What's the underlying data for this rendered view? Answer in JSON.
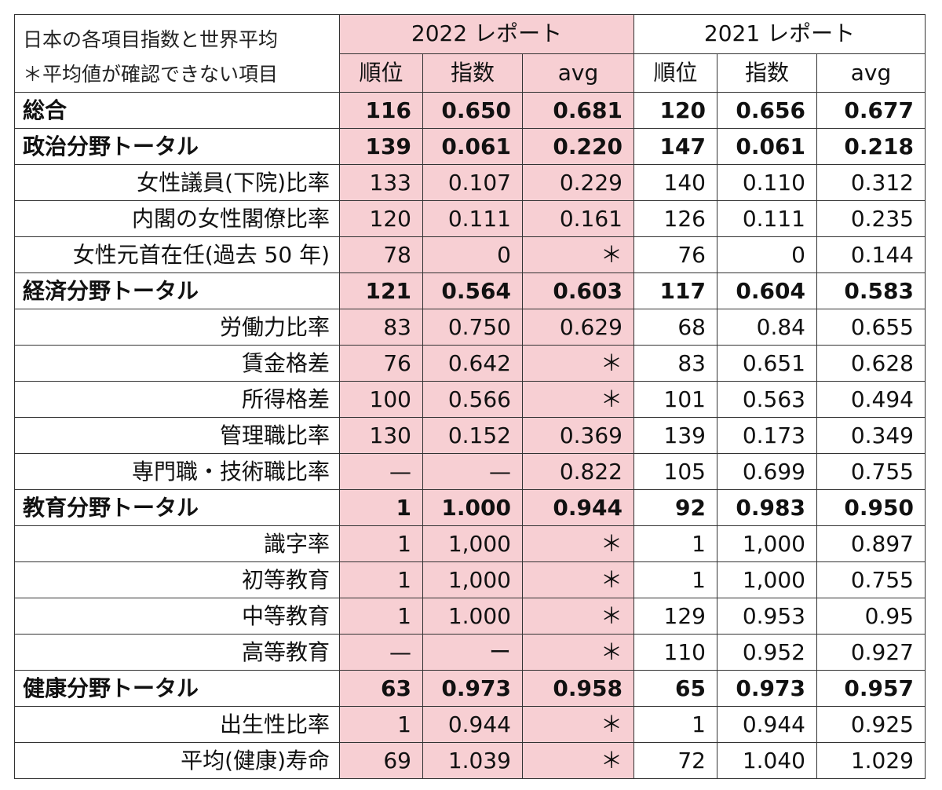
{
  "legend": {
    "line1": "日本の各項目指数と世界平均",
    "line2": "＊平均値が確認できない項目"
  },
  "headers": {
    "report_2022": "2022 レポート",
    "report_2021": "2021 レポート",
    "rank": "順位",
    "index": "指数",
    "avg": "avg"
  },
  "rows": [
    {
      "label": "総合",
      "bold": true,
      "r22": "116",
      "i22": "0.650",
      "a22": "0.681",
      "r21": "120",
      "i21": "0.656",
      "a21": "0.677"
    },
    {
      "label": "政治分野トータル",
      "bold": true,
      "r22": "139",
      "i22": "0.061",
      "a22": "0.220",
      "r21": "147",
      "i21": "0.061",
      "a21": "0.218"
    },
    {
      "label": "女性議員(下院)比率",
      "bold": false,
      "r22": "133",
      "i22": "0.107",
      "a22": "0.229",
      "r21": "140",
      "i21": "0.110",
      "a21": "0.312"
    },
    {
      "label": "内閣の女性閣僚比率",
      "bold": false,
      "r22": "120",
      "i22": "0.111",
      "a22": "0.161",
      "r21": "126",
      "i21": "0.111",
      "a21": "0.235"
    },
    {
      "label": "女性元首在任(過去 50 年)",
      "bold": false,
      "r22": "78",
      "i22": "0",
      "a22": "＊",
      "r21": "76",
      "i21": "0",
      "a21": "0.144"
    },
    {
      "label": "経済分野トータル",
      "bold": true,
      "r22": "121",
      "i22": "0.564",
      "a22": "0.603",
      "r21": "117",
      "i21": "0.604",
      "a21": "0.583"
    },
    {
      "label": "労働力比率",
      "bold": false,
      "r22": "83",
      "i22": "0.750",
      "a22": "0.629",
      "r21": "68",
      "i21": "0.84",
      "a21": "0.655"
    },
    {
      "label": "賃金格差",
      "bold": false,
      "r22": "76",
      "i22": "0.642",
      "a22": "＊",
      "r21": "83",
      "i21": "0.651",
      "a21": "0.628"
    },
    {
      "label": "所得格差",
      "bold": false,
      "r22": "100",
      "i22": "0.566",
      "a22": "＊",
      "r21": "101",
      "i21": "0.563",
      "a21": "0.494"
    },
    {
      "label": "管理職比率",
      "bold": false,
      "r22": "130",
      "i22": "0.152",
      "a22": "0.369",
      "r21": "139",
      "i21": "0.173",
      "a21": "0.349"
    },
    {
      "label": "専門職・技術職比率",
      "bold": false,
      "r22": "—",
      "i22": "—",
      "a22": "0.822",
      "r21": "105",
      "i21": "0.699",
      "a21": "0.755"
    },
    {
      "label": "教育分野トータル",
      "bold": true,
      "r22": "1",
      "i22": "1.000",
      "a22": "0.944",
      "r21": "92",
      "i21": "0.983",
      "a21": "0.950"
    },
    {
      "label": "識字率",
      "bold": false,
      "r22": "1",
      "i22": "1,000",
      "a22": "＊",
      "r21": "1",
      "i21": "1,000",
      "a21": "0.897"
    },
    {
      "label": "初等教育",
      "bold": false,
      "r22": "1",
      "i22": "1,000",
      "a22": "＊",
      "r21": "1",
      "i21": "1,000",
      "a21": "0.755"
    },
    {
      "label": "中等教育",
      "bold": false,
      "r22": "1",
      "i22": "1.000",
      "a22": "＊",
      "r21": "129",
      "i21": "0.953",
      "a21": "0.95"
    },
    {
      "label": "高等教育",
      "bold": false,
      "r22": "—",
      "i22": "ー",
      "a22": "＊",
      "r21": "110",
      "i21": "0.952",
      "a21": "0.927"
    },
    {
      "label": "健康分野トータル",
      "bold": true,
      "r22": "63",
      "i22": "0.973",
      "a22": "0.958",
      "r21": "65",
      "i21": "0.973",
      "a21": "0.957"
    },
    {
      "label": "出生性比率",
      "bold": false,
      "r22": "1",
      "i22": "0.944",
      "a22": "＊",
      "r21": "1",
      "i21": "0.944",
      "a21": "0.925"
    },
    {
      "label": "平均(健康)寿命",
      "bold": false,
      "r22": "69",
      "i22": "1.039",
      "a22": "＊",
      "r21": "72",
      "i21": "1.040",
      "a21": "1.029"
    }
  ],
  "colors": {
    "highlight_2022": "#f7cfd3",
    "border": "#333333"
  }
}
